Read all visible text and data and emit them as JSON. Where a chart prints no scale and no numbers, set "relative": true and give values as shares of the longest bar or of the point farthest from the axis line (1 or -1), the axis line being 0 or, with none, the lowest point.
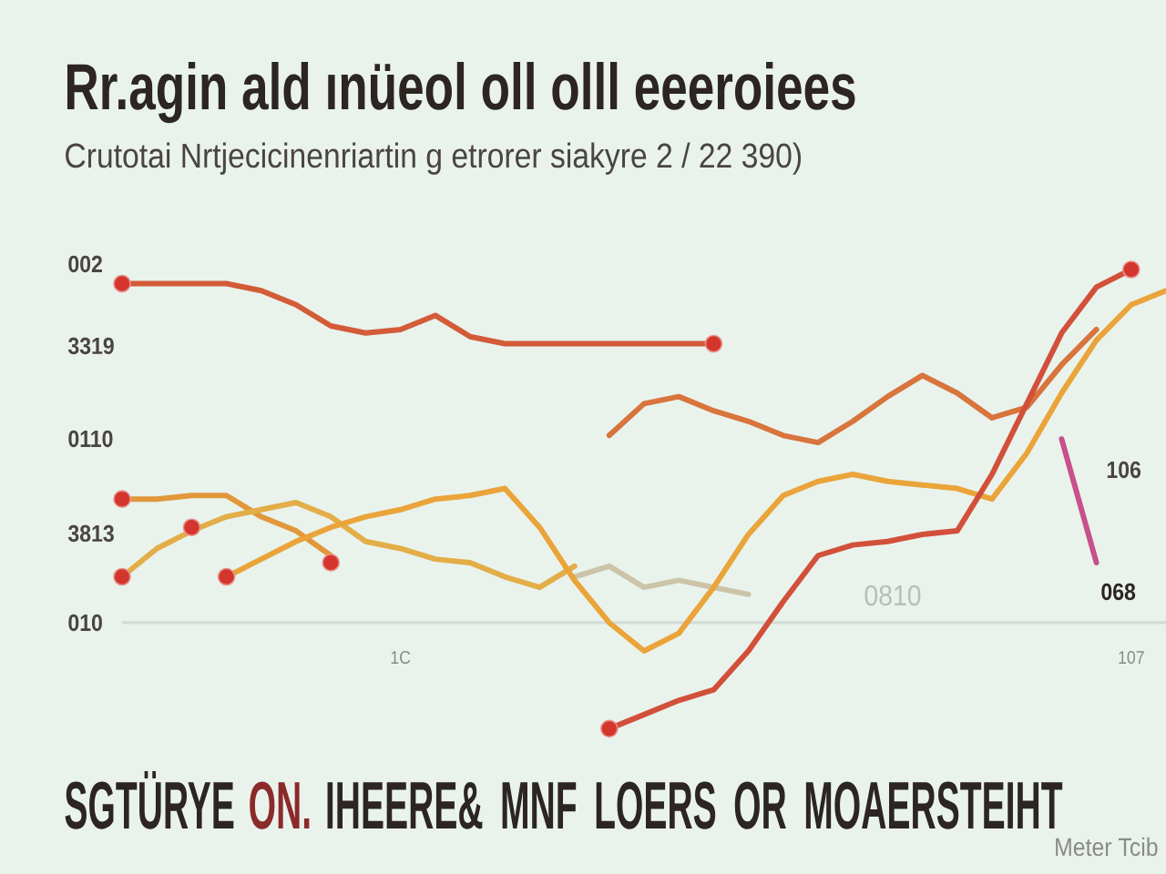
{
  "chart_data": {
    "type": "line",
    "relative": true,
    "title": "Rr.agin ald ınüeol oll olll eeeroiees",
    "subtitle": "Crutotai Nrtjecicinenriartin g etrorer siakyre 2 / 22 390)",
    "categories": [
      null,
      null,
      null,
      null,
      null,
      null,
      null,
      null,
      "1C",
      null,
      null,
      null,
      null,
      null,
      null,
      null,
      null,
      null,
      null,
      null,
      null,
      null,
      null,
      null,
      null,
      null,
      null,
      null,
      null,
      "107",
      null
    ],
    "series": [
      {
        "color": "#cbc4a8",
        "values": [
          null,
          null,
          null,
          null,
          null,
          null,
          null,
          null,
          null,
          null,
          null,
          null,
          null,
          0.13,
          0.16,
          0.1,
          0.12,
          0.1,
          0.08,
          null,
          null,
          null,
          null,
          null,
          null,
          null,
          null,
          null,
          null,
          null,
          null
        ]
      },
      {
        "color": "#d35b38",
        "values": [
          0.96,
          0.96,
          0.96,
          0.96,
          0.94,
          0.9,
          0.84,
          0.82,
          0.83,
          0.87,
          0.81,
          0.79,
          0.79,
          0.79,
          0.79,
          0.79,
          0.79,
          0.79,
          null,
          null,
          null,
          null,
          null,
          null,
          null,
          null,
          null,
          null,
          null,
          null,
          null
        ]
      },
      {
        "color": "#d8743c",
        "values": [
          null,
          null,
          null,
          null,
          null,
          null,
          null,
          null,
          null,
          null,
          null,
          null,
          null,
          null,
          0.53,
          0.62,
          0.64,
          0.6,
          0.57,
          0.53,
          0.51,
          0.57,
          0.64,
          0.7,
          0.65,
          0.58,
          0.61,
          0.73,
          0.83,
          null,
          null
        ]
      },
      {
        "color": "#e2973a",
        "values": [
          0.35,
          0.35,
          0.36,
          0.36,
          0.3,
          0.26,
          0.19,
          null,
          null,
          null,
          null,
          null,
          null,
          null,
          null,
          null,
          null,
          null,
          null,
          null,
          null,
          null,
          null,
          null,
          null,
          null,
          null,
          null,
          null,
          null,
          null
        ]
      },
      {
        "color": "#e3ad48",
        "values": [
          0.13,
          0.21,
          0.26,
          0.3,
          0.32,
          0.34,
          0.3,
          0.23,
          0.21,
          0.18,
          0.17,
          0.13,
          0.1,
          0.16,
          null,
          null,
          null,
          null,
          null,
          null,
          null,
          null,
          null,
          null,
          null,
          null,
          null,
          null,
          null,
          null,
          null
        ]
      },
      {
        "color": "#eaa43a",
        "values": [
          null,
          null,
          null,
          0.13,
          0.18,
          0.23,
          0.27,
          0.3,
          0.32,
          0.35,
          0.36,
          0.38,
          0.27,
          0.12,
          0.0,
          -0.08,
          -0.03,
          0.1,
          0.25,
          0.36,
          0.4,
          0.42,
          0.4,
          0.39,
          0.38,
          0.35,
          0.48,
          0.65,
          0.8,
          0.9,
          0.94
        ]
      },
      {
        "color": "#d2503a",
        "values": [
          null,
          null,
          null,
          null,
          null,
          null,
          null,
          null,
          null,
          null,
          null,
          null,
          null,
          null,
          -0.3,
          -0.26,
          -0.22,
          -0.19,
          -0.08,
          0.06,
          0.19,
          0.22,
          0.23,
          0.25,
          0.26,
          0.42,
          0.62,
          0.82,
          0.95,
          1.0,
          null
        ]
      },
      {
        "color": "#c8508c",
        "values": [
          null,
          null,
          null,
          null,
          null,
          null,
          null,
          null,
          null,
          null,
          null,
          null,
          null,
          null,
          null,
          null,
          null,
          null,
          null,
          null,
          null,
          null,
          null,
          null,
          null,
          null,
          null,
          0.52,
          0.17,
          null,
          null
        ]
      },
      {
        "type": "scatter",
        "marker": "circle",
        "color": "#d4352c",
        "values": [
          0.96,
          null,
          0.27,
          null,
          null,
          null,
          0.17,
          null,
          null,
          null,
          null,
          null,
          null,
          null,
          -0.3,
          null,
          null,
          0.79,
          null,
          null,
          null,
          null,
          null,
          null,
          null,
          null,
          null,
          null,
          null,
          1.0,
          null
        ]
      },
      {
        "type": "scatter",
        "marker": "circle",
        "color": "#d4352c",
        "values": [
          0.35,
          null,
          null,
          0.13,
          null,
          null,
          null,
          null,
          null,
          null,
          null,
          null,
          null,
          null,
          null,
          null,
          null,
          null,
          null,
          null,
          null,
          null,
          null,
          null,
          null,
          null,
          null,
          null,
          null,
          null,
          null
        ]
      },
      {
        "type": "scatter",
        "marker": "circle",
        "color": "#d4352c",
        "values": [
          0.13,
          null,
          null,
          null,
          null,
          null,
          null,
          null,
          null,
          null,
          null,
          null,
          null,
          null,
          null,
          null,
          null,
          null,
          null,
          null,
          null,
          null,
          null,
          null,
          null,
          null,
          null,
          null,
          null,
          null,
          null
        ]
      }
    ],
    "annotations": [
      "002",
      "3319",
      "0110",
      "3813",
      "010",
      "106",
      "068",
      "0810",
      "SGTÜRYE",
      "ON.",
      "IHEERE& MNF LOERS OR MOAERSTEIHT",
      "Meter Tcib"
    ]
  }
}
